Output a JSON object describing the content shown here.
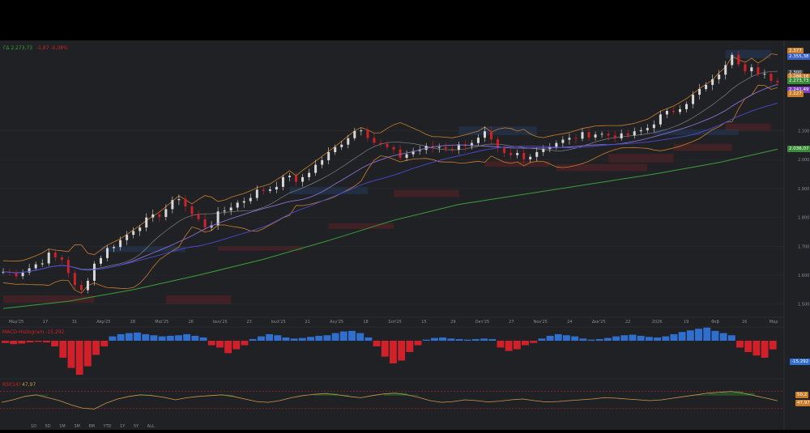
{
  "header": {
    "symbol": "ΓΔ",
    "last": "2.273,73",
    "change": "-1,87",
    "change_pct": "-0,08%"
  },
  "price_scale_labels": [
    "2.100",
    "2.000",
    "1.900",
    "1.800",
    "1.700",
    "1.600",
    "1.500"
  ],
  "price_tags": [
    {
      "text": "2.377",
      "color": "#c87d2c"
    },
    {
      "text": "2.355,38",
      "color": "#3b5fbf"
    },
    {
      "text": "2.300",
      "color": "#3a3d42"
    },
    {
      "text": "2.286,16",
      "color": "#c87d2c"
    },
    {
      "text": "2.273,73",
      "color": "#3a8a3a"
    },
    {
      "text": "2.241,49",
      "color": "#7e3fbf"
    },
    {
      "text": "2.227",
      "color": "#c87d2c"
    },
    {
      "text": "2.036,07",
      "color": "#3a8a3a"
    }
  ],
  "time_labels": [
    "Μαρ'25",
    "17",
    "31",
    "Απρ'25",
    "28",
    "Μαϊ'25",
    "26",
    "Ιουν'25",
    "23",
    "Ιουλ'25",
    "21",
    "Αυγ'25",
    "18",
    "Σεπ'25",
    "15",
    "29",
    "Οκτ'25",
    "27",
    "Νοε'25",
    "24",
    "Δεκ'25",
    "22",
    "2026",
    "19",
    "Φεβ",
    "16",
    "Μαρ"
  ],
  "macd": {
    "label": "MACD-Histogram",
    "value": "-15,292"
  },
  "rsi": {
    "label": "RSI(14)",
    "value": "47,97",
    "tag_upper": "50,2",
    "tag_value": "47,97"
  },
  "toolbar": [
    "1D",
    "5D",
    "1M",
    "3M",
    "6M",
    "YTD",
    "1Y",
    "5Y",
    "ALL"
  ],
  "colors": {
    "up": "#d8d8d8",
    "down": "#d0202a",
    "ma200": "#3aa03a",
    "bb": "#c87d2c",
    "ma20": "#8a6fd0",
    "ma50": "#4a4ad0",
    "macd_up": "#2f6fd0",
    "macd_down": "#d0202a",
    "rsi": "#c89a4a",
    "bg": "#202124"
  },
  "chart_data": {
    "type": "candlestick",
    "x": [
      "Μαρ'25",
      "17",
      "31",
      "Απρ'25",
      "28",
      "Μαϊ'25",
      "26",
      "Ιουν'25",
      "23",
      "Ιουλ'25",
      "21",
      "Αυγ'25",
      "18",
      "Σεπ'25",
      "15",
      "29",
      "Οκτ'25",
      "27",
      "Νοε'25",
      "24",
      "Δεκ'25",
      "22",
      "2026",
      "19",
      "Φεβ",
      "16",
      "Μαρ"
    ],
    "close_path": [
      [
        0,
        1612
      ],
      [
        2,
        1605
      ],
      [
        4,
        1625
      ],
      [
        6,
        1650
      ],
      [
        7,
        1670
      ],
      [
        8,
        1660
      ],
      [
        9,
        1655
      ],
      [
        10,
        1612
      ],
      [
        11,
        1560
      ],
      [
        12,
        1545
      ],
      [
        13,
        1590
      ],
      [
        14,
        1640
      ],
      [
        16,
        1690
      ],
      [
        18,
        1720
      ],
      [
        20,
        1760
      ],
      [
        22,
        1790
      ],
      [
        24,
        1810
      ],
      [
        26,
        1850
      ],
      [
        27,
        1870
      ],
      [
        28,
        1840
      ],
      [
        29,
        1810
      ],
      [
        30,
        1790
      ],
      [
        31,
        1770
      ],
      [
        32,
        1780
      ],
      [
        33,
        1810
      ],
      [
        35,
        1840
      ],
      [
        37,
        1860
      ],
      [
        39,
        1890
      ],
      [
        41,
        1900
      ],
      [
        43,
        1930
      ],
      [
        44,
        1950
      ],
      [
        45,
        1915
      ],
      [
        46,
        1940
      ],
      [
        48,
        1980
      ],
      [
        50,
        2020
      ],
      [
        52,
        2060
      ],
      [
        54,
        2100
      ],
      [
        55,
        2110
      ],
      [
        56,
        2085
      ],
      [
        57,
        2060
      ],
      [
        59,
        2040
      ],
      [
        61,
        2010
      ],
      [
        63,
        2030
      ],
      [
        65,
        2040
      ],
      [
        67,
        2045
      ],
      [
        69,
        2040
      ],
      [
        71,
        2055
      ],
      [
        73,
        2070
      ],
      [
        74,
        2090
      ],
      [
        75,
        2060
      ],
      [
        76,
        2030
      ],
      [
        77,
        2015
      ],
      [
        78,
        2010
      ],
      [
        79,
        2020
      ],
      [
        80,
        2000
      ],
      [
        81,
        2020
      ],
      [
        83,
        2040
      ],
      [
        85,
        2060
      ],
      [
        87,
        2070
      ],
      [
        89,
        2085
      ],
      [
        91,
        2090
      ],
      [
        93,
        2085
      ],
      [
        95,
        2080
      ],
      [
        97,
        2090
      ],
      [
        99,
        2110
      ],
      [
        101,
        2150
      ],
      [
        103,
        2170
      ],
      [
        105,
        2200
      ],
      [
        107,
        2240
      ],
      [
        109,
        2270
      ],
      [
        110,
        2300
      ],
      [
        111,
        2320
      ],
      [
        112,
        2370
      ],
      [
        113,
        2340
      ],
      [
        114,
        2315
      ],
      [
        115,
        2330
      ],
      [
        116,
        2295
      ],
      [
        117,
        2290
      ],
      [
        118,
        2265
      ],
      [
        119,
        2275
      ]
    ],
    "ma200_path": [
      [
        0,
        1485
      ],
      [
        10,
        1510
      ],
      [
        20,
        1550
      ],
      [
        30,
        1600
      ],
      [
        40,
        1655
      ],
      [
        50,
        1720
      ],
      [
        60,
        1790
      ],
      [
        70,
        1845
      ],
      [
        80,
        1880
      ],
      [
        90,
        1915
      ],
      [
        100,
        1950
      ],
      [
        110,
        1990
      ],
      [
        119,
        2036
      ]
    ],
    "ylim": [
      1460,
      2390
    ],
    "macd_hist": [
      -4,
      -6,
      -5,
      -3,
      -2,
      -3,
      -10,
      -30,
      -48,
      -60,
      -45,
      -25,
      -10,
      8,
      12,
      14,
      15,
      12,
      10,
      8,
      9,
      10,
      12,
      9,
      6,
      -8,
      -12,
      -22,
      -15,
      -8,
      3,
      8,
      12,
      10,
      6,
      4,
      5,
      7,
      9,
      10,
      14,
      17,
      18,
      14,
      6,
      -10,
      -28,
      -40,
      -35,
      -20,
      -8,
      2,
      5,
      6,
      4,
      3,
      2,
      3,
      4,
      3,
      -12,
      -18,
      -15,
      -8,
      -4,
      4,
      9,
      12,
      10,
      8,
      4,
      2,
      3,
      5,
      8,
      10,
      11,
      9,
      7,
      6,
      8,
      12,
      16,
      19,
      22,
      24,
      18,
      14,
      10,
      -12,
      -20,
      -26,
      -30,
      -15.292
    ],
    "rsi": [
      44,
      50,
      58,
      62,
      55,
      48,
      38,
      30,
      28,
      42,
      52,
      58,
      62,
      60,
      56,
      50,
      55,
      58,
      60,
      62,
      58,
      52,
      46,
      44,
      48,
      55,
      60,
      63,
      65,
      62,
      58,
      55,
      60,
      64,
      66,
      62,
      56,
      48,
      44,
      46,
      50,
      48,
      45,
      47,
      50,
      52,
      48,
      45,
      46,
      48,
      50,
      52,
      55,
      54,
      52,
      50,
      48,
      50,
      54,
      58,
      62,
      66,
      68,
      70,
      66,
      60,
      54,
      47.97
    ],
    "rsi_range": [
      0,
      100
    ]
  }
}
